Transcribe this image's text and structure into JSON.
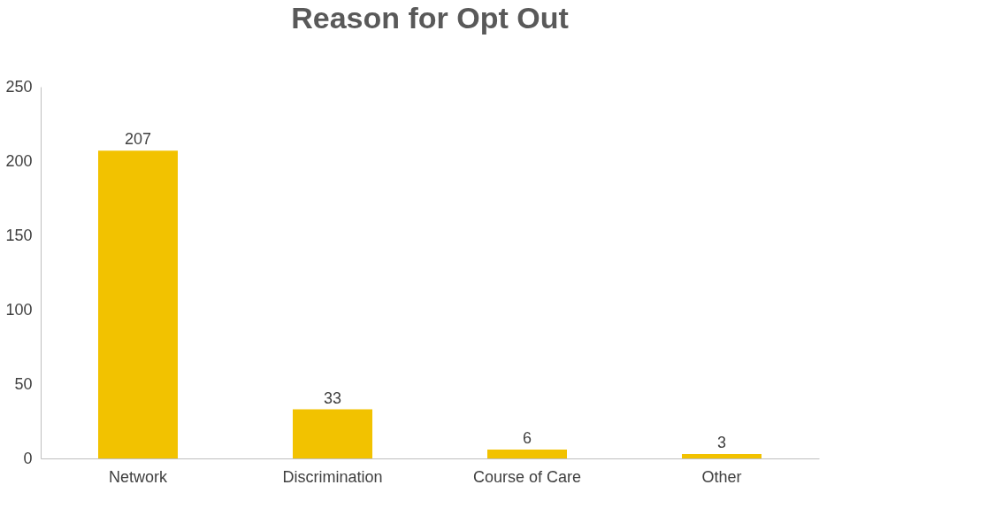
{
  "chart_data": {
    "type": "bar",
    "title": "Reason for Opt Out",
    "categories": [
      "Network",
      "Discrimination",
      "Course of Care",
      "Other"
    ],
    "values": [
      207,
      33,
      6,
      3
    ],
    "color": "#f2c200",
    "ylim": [
      0,
      250
    ],
    "yticks": [
      0,
      50,
      100,
      150,
      200,
      250
    ],
    "grid": false,
    "data_labels": true
  }
}
